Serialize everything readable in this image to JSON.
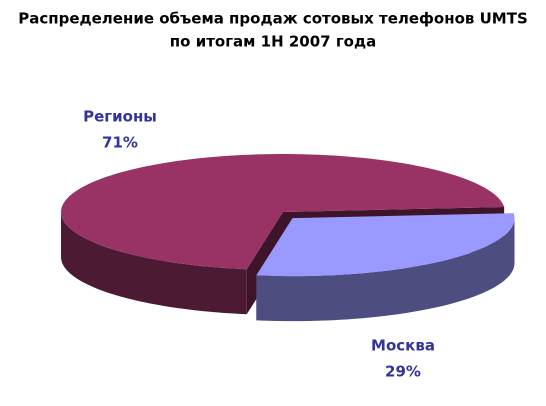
{
  "chart_data": {
    "type": "pie",
    "title": [
      "Распределение объема продаж сотовых телефонов UMTS",
      "по итогам 1H 2007 года"
    ],
    "categories": [
      "Регионы",
      "Москва"
    ],
    "values": [
      71,
      29
    ],
    "value_labels": [
      "71%",
      "29%"
    ],
    "colors": [
      "#993366",
      "#9999ff"
    ]
  }
}
